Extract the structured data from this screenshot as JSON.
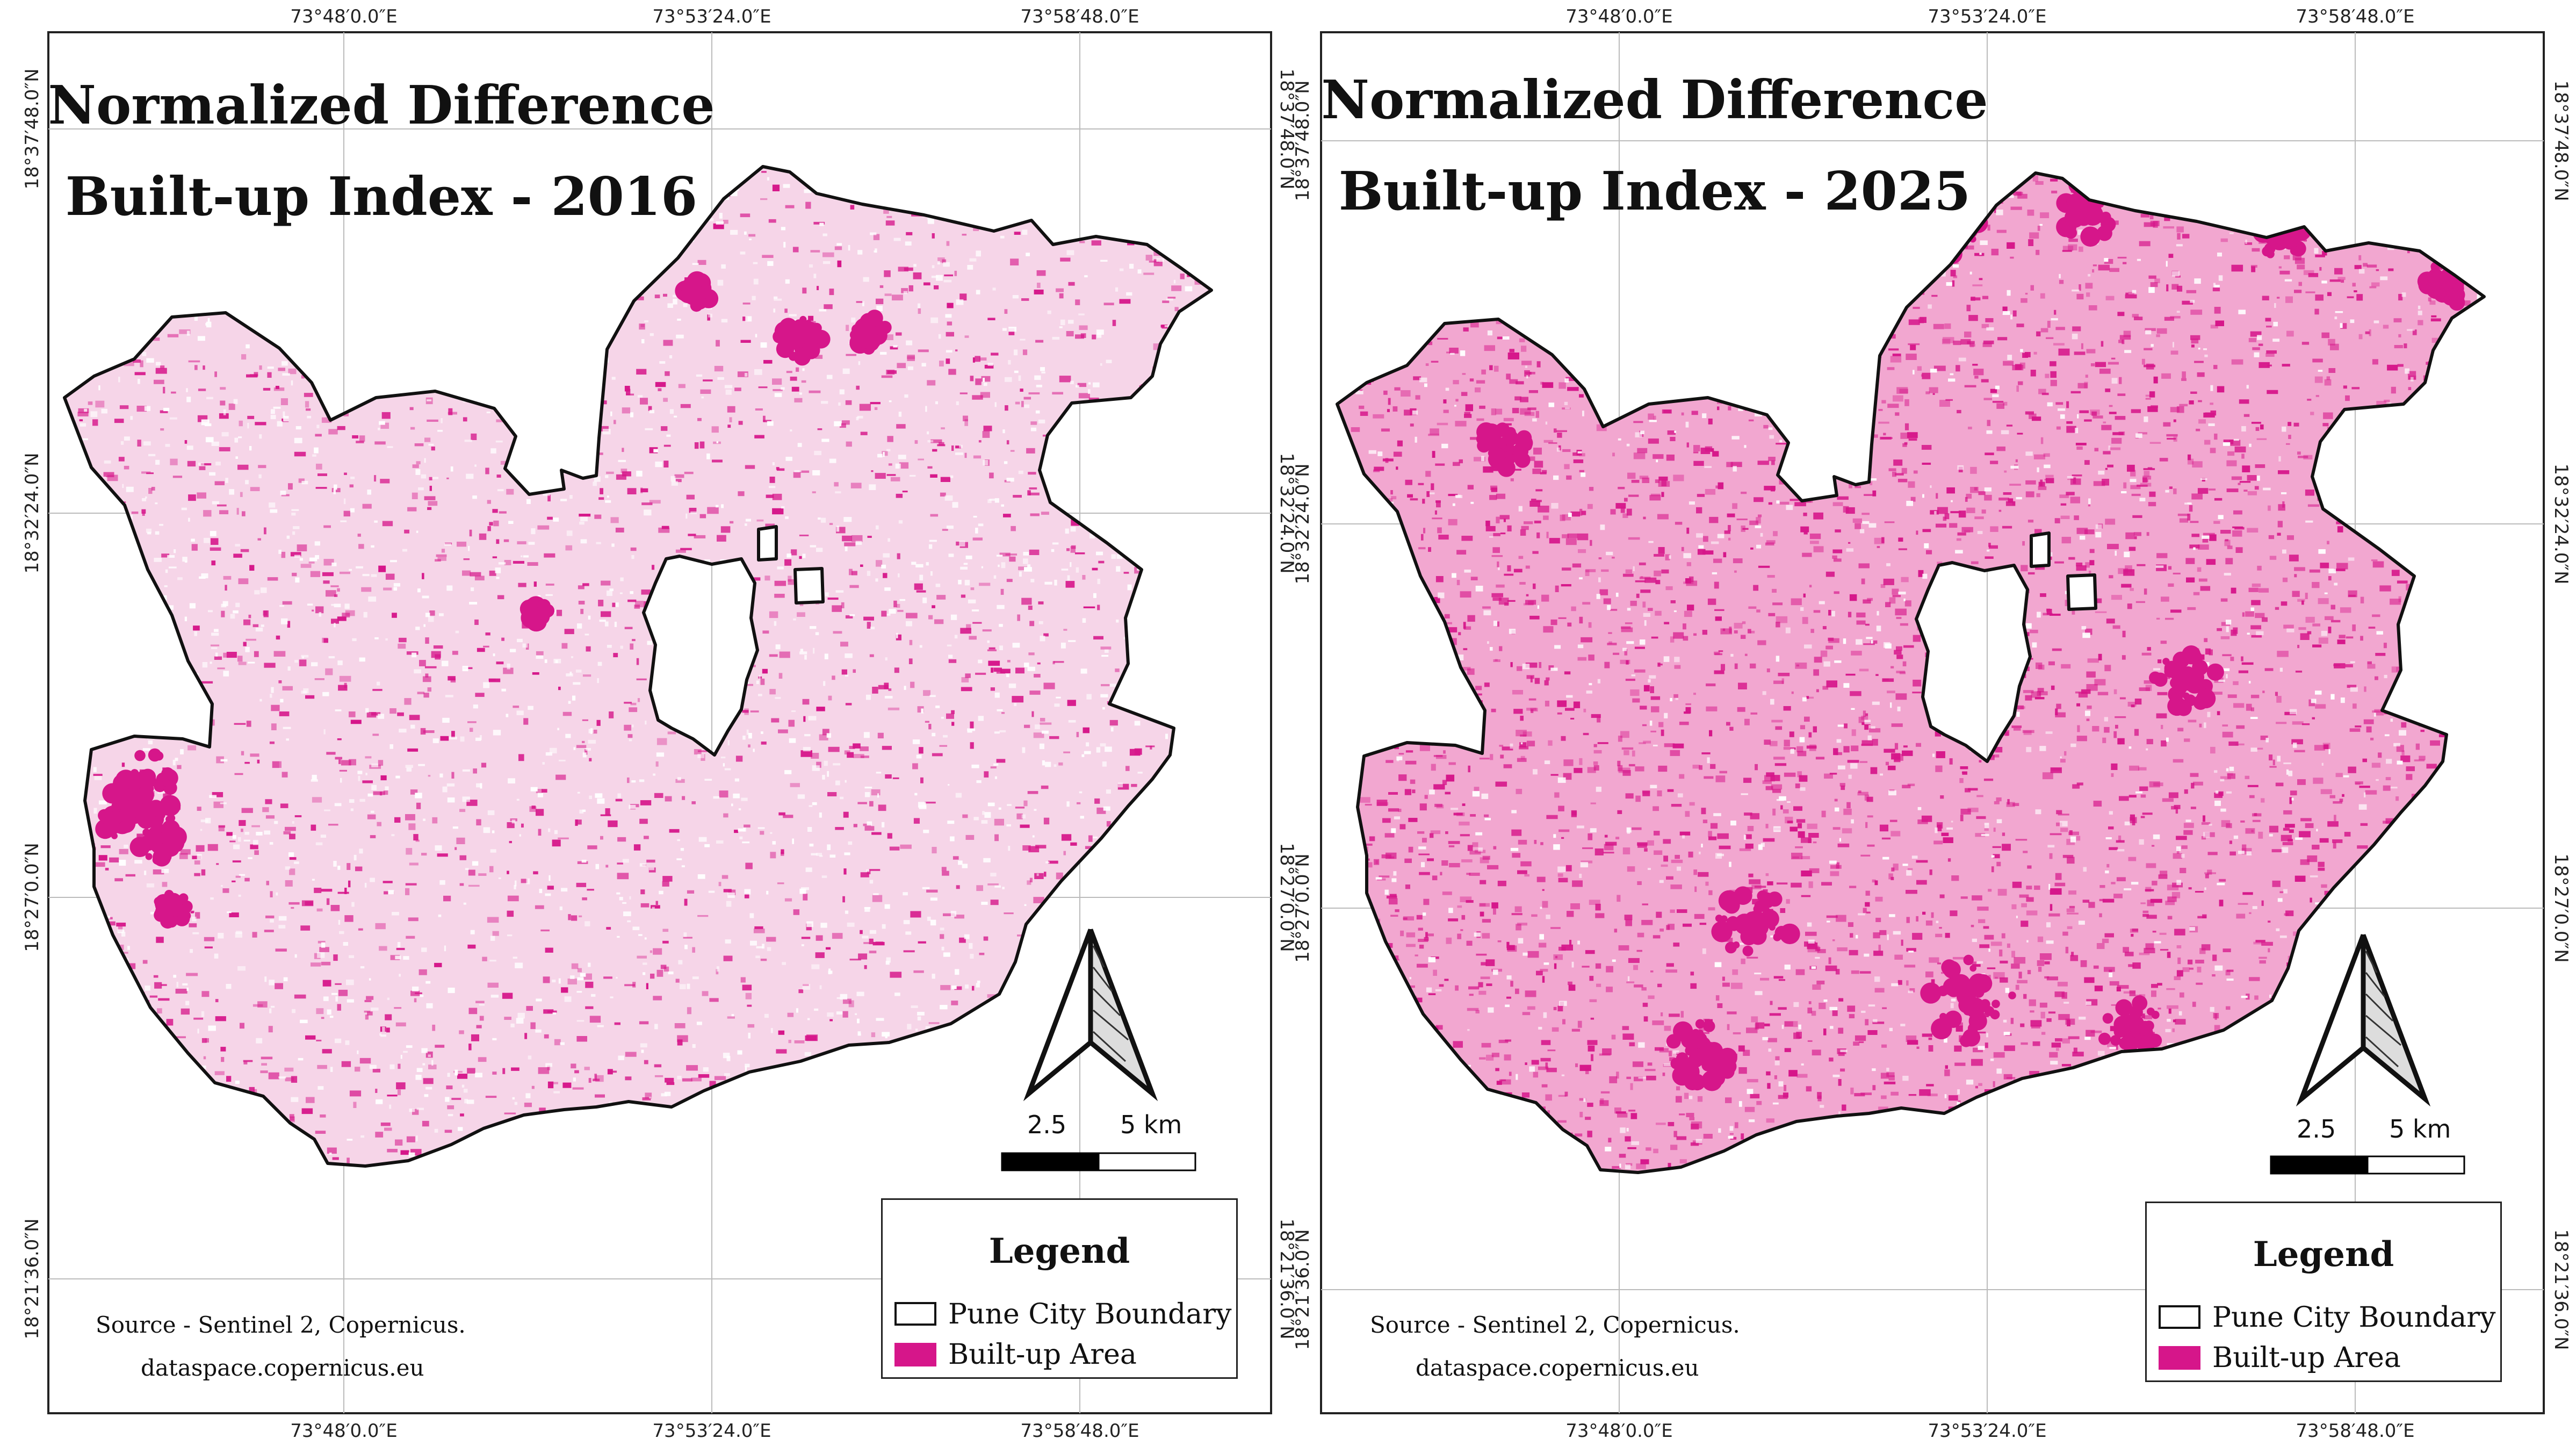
{
  "colors": {
    "built_up": "#d6168a",
    "built_up_light": "#f6d5e8",
    "boundary": "#111111",
    "grid": "#bbbbbb",
    "frame": "#222222"
  },
  "coords": {
    "lon": [
      "73°48′0.0″E",
      "73°53′24.0″E",
      "73°58′48.0″E"
    ],
    "lat": [
      "18°37′48.0″N",
      "18°32′24.0″N",
      "18°27′0.0″N",
      "18°21′36.0″N"
    ]
  },
  "maps": [
    {
      "year": "2016",
      "title_line1": "Normalized Difference",
      "title_line2": "Built-up Index - 2016",
      "density": 0.45
    },
    {
      "year": "2025",
      "title_line1": "Normalized Difference",
      "title_line2": "Built-up Index - 2025",
      "density": 0.82
    }
  ],
  "legend": {
    "title": "Legend",
    "items": [
      {
        "label": "Pune City Boundary",
        "swatch": "boundary"
      },
      {
        "label": "Built-up Area",
        "swatch": "built_up"
      }
    ]
  },
  "scale_bar": {
    "label_mid": "2.5",
    "label_end": "5 km"
  },
  "source": {
    "line1": "Source - Sentinel 2, Copernicus.",
    "line2": "dataspace.copernicus.eu"
  },
  "north_arrow": {
    "icon": "north-arrow-icon"
  }
}
